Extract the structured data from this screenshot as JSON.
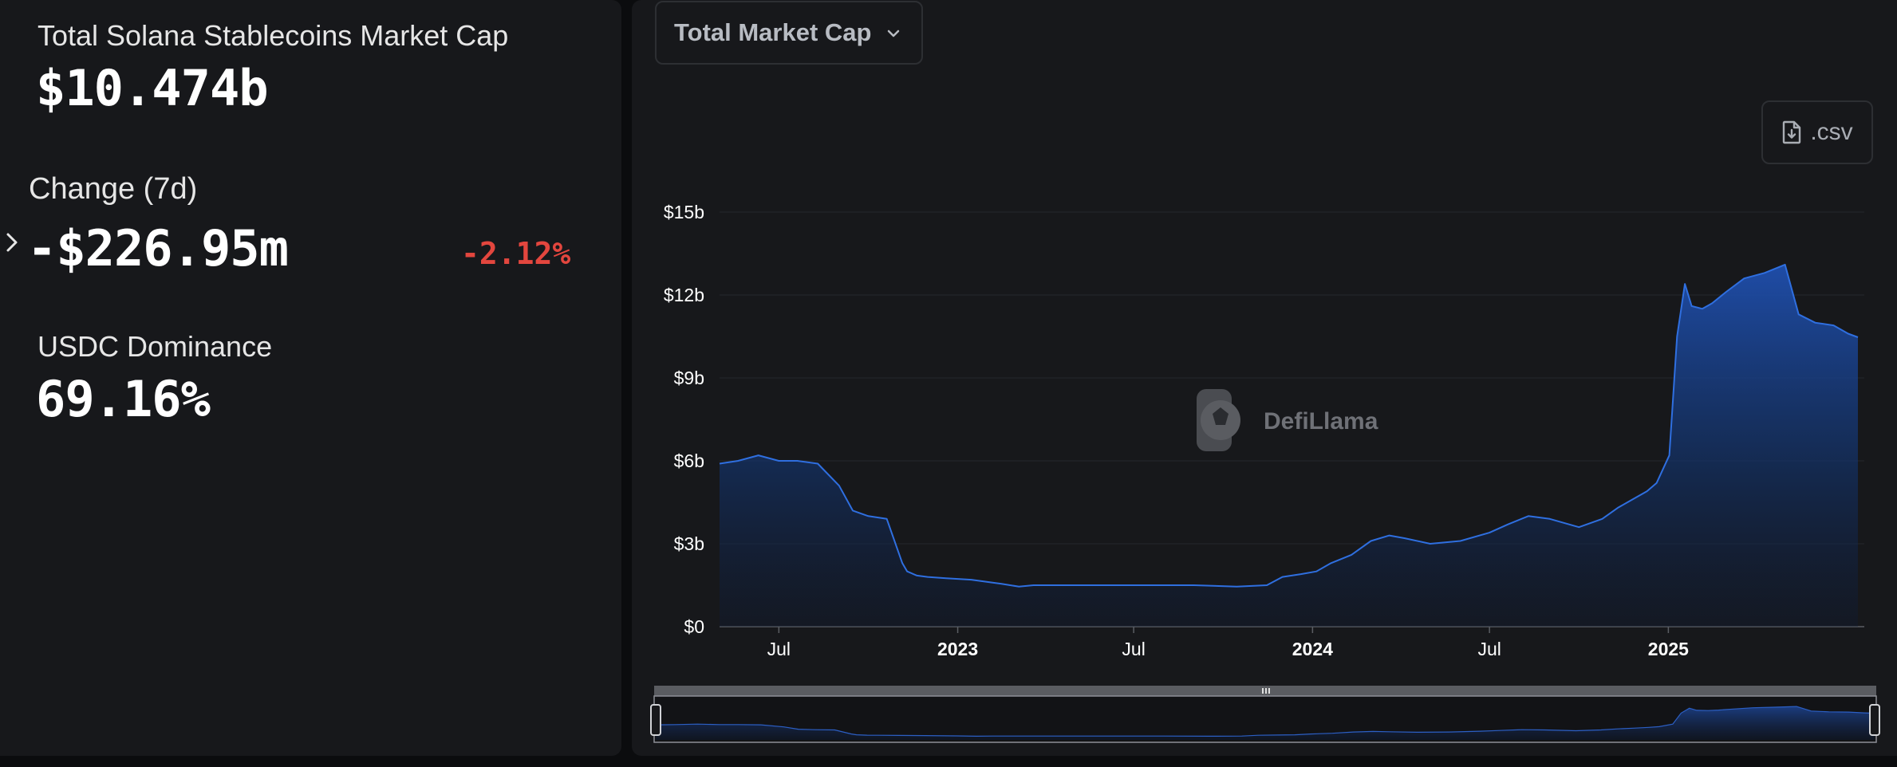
{
  "stats": {
    "market_cap_label": "Total Solana Stablecoins Market Cap",
    "market_cap_value": "$10.474b",
    "change_label": "Change (7d)",
    "change_value": "-$226.95m",
    "change_pct": "-2.12%",
    "dominance_label": "USDC Dominance",
    "dominance_value": "69.16%"
  },
  "controls": {
    "metric_select": "Total Market Cap",
    "csv_label": ".csv"
  },
  "watermark": "DefiLlama",
  "colors": {
    "line": "#2f6fe0",
    "negative": "#e3463e",
    "panel": "#17181b"
  },
  "chart_data": {
    "type": "area",
    "title": "",
    "xlabel": "",
    "ylabel": "",
    "ylim": [
      0,
      15
    ],
    "y_unit": "billion USD",
    "y_ticks": [
      "$0",
      "$3b",
      "$6b",
      "$9b",
      "$12b",
      "$15b"
    ],
    "x_ticks": [
      "Jul",
      "2023",
      "Jul",
      "2024",
      "Jul",
      "2025"
    ],
    "x_tick_dates": [
      "2022-07-01",
      "2023-01-01",
      "2023-07-01",
      "2024-01-01",
      "2024-07-01",
      "2025-01-01"
    ],
    "grid": true,
    "legend": "none",
    "series": [
      {
        "x": [
          "2022-05-01",
          "2022-05-20",
          "2022-06-10",
          "2022-07-01",
          "2022-07-20",
          "2022-08-10",
          "2022-09-01",
          "2022-09-15",
          "2022-10-01",
          "2022-10-20",
          "2022-11-05",
          "2022-11-10",
          "2022-11-20",
          "2022-12-01",
          "2022-12-20",
          "2023-01-15",
          "2023-02-15",
          "2023-03-05",
          "2023-03-20",
          "2023-04-20",
          "2023-06-01",
          "2023-07-15",
          "2023-09-01",
          "2023-10-15",
          "2023-11-15",
          "2023-12-01",
          "2023-12-20",
          "2024-01-05",
          "2024-01-20",
          "2024-02-10",
          "2024-03-01",
          "2024-03-20",
          "2024-04-05",
          "2024-05-01",
          "2024-06-01",
          "2024-07-01",
          "2024-07-20",
          "2024-08-10",
          "2024-09-01",
          "2024-10-01",
          "2024-10-25",
          "2024-11-10",
          "2024-11-25",
          "2024-12-10",
          "2024-12-20",
          "2025-01-02",
          "2025-01-10",
          "2025-01-18",
          "2025-01-25",
          "2025-02-05",
          "2025-02-15",
          "2025-03-01",
          "2025-03-20",
          "2025-04-10",
          "2025-05-01",
          "2025-05-15",
          "2025-06-01",
          "2025-06-20",
          "2025-07-05",
          "2025-07-15"
        ],
        "values": [
          5.9,
          6.0,
          6.2,
          6.0,
          6.0,
          5.9,
          5.1,
          4.2,
          4.0,
          3.9,
          2.3,
          2.0,
          1.85,
          1.8,
          1.75,
          1.7,
          1.55,
          1.45,
          1.5,
          1.5,
          1.5,
          1.5,
          1.5,
          1.45,
          1.5,
          1.8,
          1.9,
          2.0,
          2.3,
          2.6,
          3.1,
          3.3,
          3.2,
          3.0,
          3.1,
          3.4,
          3.7,
          4.0,
          3.9,
          3.6,
          3.9,
          4.3,
          4.6,
          4.9,
          5.2,
          6.2,
          10.5,
          12.4,
          11.6,
          11.5,
          11.7,
          12.1,
          12.6,
          12.8,
          13.1,
          11.3,
          11.0,
          10.9,
          10.6,
          10.47
        ]
      }
    ]
  }
}
